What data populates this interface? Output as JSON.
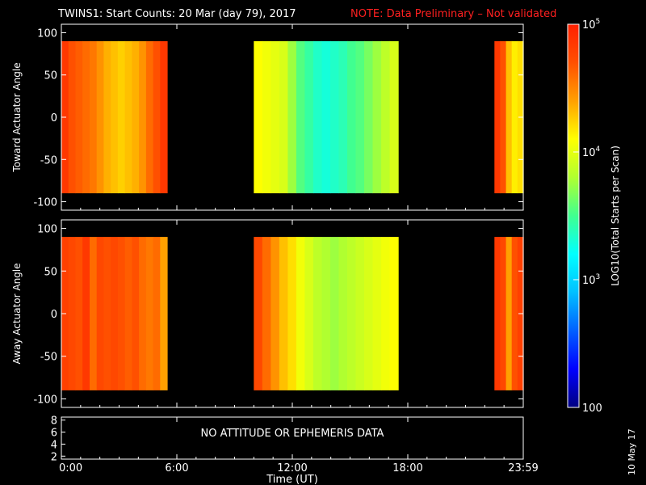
{
  "title": {
    "main": "TWINS1: Start Counts: 20 Mar (day  79), 2017",
    "note": "NOTE: Data Preliminary – Not validated"
  },
  "footer": {
    "date_stamp": "10 May 17"
  },
  "colors": {
    "background": "#000000",
    "axes": "#ffffff",
    "note": "#ff2020"
  },
  "chart_data": [
    {
      "type": "heatmap",
      "panel": "top",
      "ylabel": "Toward Actuator Angle",
      "ylim": [
        -110,
        110
      ],
      "yticks": [
        "100",
        "50",
        "0",
        "-50",
        "-100"
      ],
      "ytick_values": [
        100,
        50,
        0,
        -50,
        -100
      ],
      "xlim_hours": [
        0,
        24
      ],
      "data_yrange": [
        -90,
        90
      ],
      "segments": [
        {
          "start": "0:00",
          "end": "5:30",
          "start_h": 0.0,
          "end_h": 5.5,
          "log_counts": [
            4.85,
            4.7,
            4.65,
            4.6,
            4.55,
            4.45,
            4.35,
            4.3,
            4.25,
            4.3,
            4.35,
            4.45,
            4.6,
            4.7,
            4.85
          ]
        },
        {
          "start": "10:00",
          "end": "17:30",
          "start_h": 10.0,
          "end_h": 17.5,
          "log_counts": [
            4.1,
            4.05,
            4.0,
            3.95,
            3.75,
            3.55,
            3.45,
            3.35,
            3.3,
            3.35,
            3.4,
            3.5,
            3.55,
            3.65,
            3.75,
            3.85,
            3.95
          ]
        },
        {
          "start": "22:30",
          "end": "23:59",
          "start_h": 22.5,
          "end_h": 24.0,
          "log_counts": [
            4.85,
            4.7,
            4.3,
            4.15,
            4.2
          ]
        }
      ]
    },
    {
      "type": "heatmap",
      "panel": "middle",
      "ylabel": "Away Actuator Angle",
      "ylim": [
        -110,
        110
      ],
      "yticks": [
        "100",
        "50",
        "0",
        "-50",
        "-100"
      ],
      "ytick_values": [
        100,
        50,
        0,
        -50,
        -100
      ],
      "xlim_hours": [
        0,
        24
      ],
      "data_yrange": [
        -90,
        90
      ],
      "segments": [
        {
          "start": "0:00",
          "end": "5:30",
          "start_h": 0.0,
          "end_h": 5.5,
          "log_counts": [
            4.8,
            4.75,
            4.7,
            4.85,
            4.6,
            4.75,
            4.7,
            4.75,
            4.7,
            4.65,
            4.7,
            4.6,
            4.55,
            4.6,
            4.4
          ]
        },
        {
          "start": "10:00",
          "end": "17:30",
          "start_h": 10.0,
          "end_h": 17.5,
          "log_counts": [
            4.75,
            4.6,
            4.45,
            4.3,
            4.2,
            4.05,
            3.95,
            3.85,
            3.8,
            3.75,
            3.8,
            3.85,
            3.9,
            3.95,
            4.0,
            4.05,
            4.1
          ]
        },
        {
          "start": "22:30",
          "end": "23:59",
          "start_h": 22.5,
          "end_h": 24.0,
          "log_counts": [
            4.85,
            4.75,
            4.4,
            4.7,
            4.8
          ]
        }
      ]
    },
    {
      "type": "table",
      "panel": "bottom",
      "ylim": [
        1.5,
        8.5
      ],
      "yticks": [
        "8",
        "6",
        "4",
        "2"
      ],
      "ytick_values": [
        8,
        6,
        4,
        2
      ],
      "message": "NO ATTITUDE OR EPHEMERIS DATA",
      "xlabel": "Time (UT)",
      "xticks": [
        "0:00",
        "6:00",
        "12:00",
        "18:00",
        "23:59"
      ],
      "xtick_hours": [
        0,
        6,
        12,
        18,
        24
      ]
    }
  ],
  "colorbar": {
    "label": "LOG10(Total Starts per Scan)",
    "scale": "log",
    "range": [
      100,
      100000
    ],
    "ticks": [
      {
        "label": "10",
        "exp": "5",
        "value": 5
      },
      {
        "label": "10",
        "exp": "4",
        "value": 4
      },
      {
        "label": "10",
        "exp": "3",
        "value": 3
      },
      {
        "label": "100",
        "exp": "",
        "value": 2
      }
    ],
    "colormap": [
      "#000080",
      "#0000ff",
      "#0060ff",
      "#00c0ff",
      "#00ffff",
      "#40ff90",
      "#b0ff30",
      "#ffff00",
      "#ffa000",
      "#ff5000",
      "#ff2000"
    ]
  }
}
